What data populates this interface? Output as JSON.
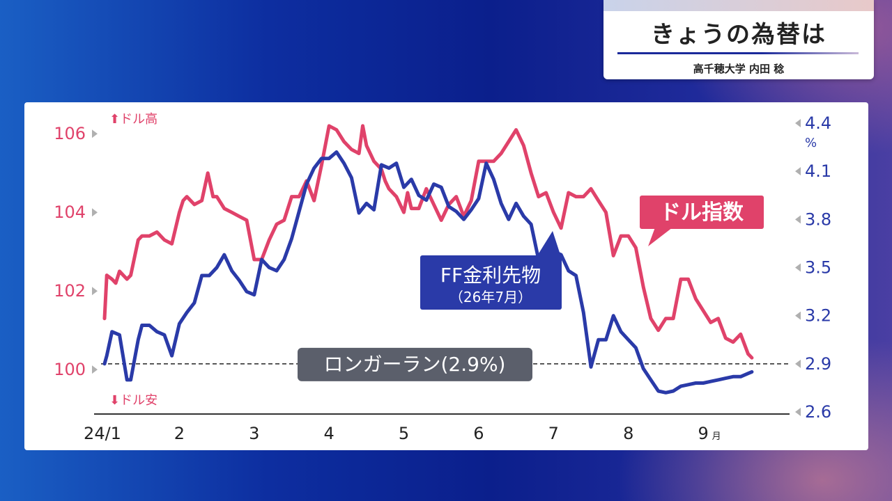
{
  "header": {
    "title": "きょうの為替は",
    "author": "高千穂大学 内田 稔"
  },
  "chart_data": {
    "type": "line",
    "x_ticks": [
      "24/1",
      "2",
      "3",
      "4",
      "5",
      "6",
      "7",
      "8",
      "9"
    ],
    "x_tick_suffix": "月",
    "left_axis": {
      "ticks": [
        100,
        102,
        104,
        106
      ],
      "range": [
        99.1,
        106.5
      ],
      "top_note": "⬆ドル高",
      "bottom_note": "⬇ドル安",
      "color": "#e0426a"
    },
    "right_axis": {
      "ticks": [
        "2.6",
        "2.9",
        "3.2",
        "3.5",
        "3.8",
        "4.1",
        "4.4"
      ],
      "range": [
        2.6,
        4.4
      ],
      "unit": "%",
      "color": "#2a3aa8"
    },
    "reference_line": {
      "value": 2.9,
      "label": "ロンガーラン(2.9%)"
    },
    "series": [
      {
        "name": "ドル指数",
        "axis": "left",
        "color": "#e0426a",
        "x": [
          1.0,
          1.03,
          1.1,
          1.15,
          1.2,
          1.3,
          1.35,
          1.45,
          1.5,
          1.6,
          1.7,
          1.8,
          1.9,
          2.0,
          2.05,
          2.1,
          2.2,
          2.3,
          2.38,
          2.45,
          2.5,
          2.6,
          2.7,
          2.8,
          2.9,
          3.0,
          3.1,
          3.2,
          3.3,
          3.4,
          3.5,
          3.6,
          3.7,
          3.8,
          3.9,
          4.0,
          4.1,
          4.2,
          4.3,
          4.4,
          4.45,
          4.5,
          4.6,
          4.7,
          4.75,
          4.8,
          4.9,
          5.0,
          5.05,
          5.1,
          5.2,
          5.3,
          5.4,
          5.5,
          5.6,
          5.7,
          5.8,
          5.9,
          6.0,
          6.1,
          6.2,
          6.3,
          6.4,
          6.5,
          6.6,
          6.7,
          6.8,
          6.9,
          7.0,
          7.1,
          7.2,
          7.3,
          7.4,
          7.5,
          7.6,
          7.7,
          7.8,
          7.9,
          8.0,
          8.1,
          8.2,
          8.3,
          8.4,
          8.5,
          8.6,
          8.7,
          8.8,
          8.9,
          9.0,
          9.1,
          9.2,
          9.3,
          9.4,
          9.5,
          9.6,
          9.65
        ],
        "values": [
          101.3,
          102.4,
          102.3,
          102.2,
          102.5,
          102.3,
          102.4,
          103.3,
          103.4,
          103.4,
          103.5,
          103.3,
          103.2,
          104.0,
          104.3,
          104.4,
          104.2,
          104.3,
          105.0,
          104.4,
          104.4,
          104.1,
          104.0,
          103.9,
          103.8,
          102.8,
          102.8,
          103.3,
          103.7,
          103.8,
          104.4,
          104.4,
          104.8,
          104.3,
          105.2,
          106.2,
          106.1,
          105.8,
          105.6,
          105.5,
          106.2,
          105.7,
          105.3,
          105.1,
          104.8,
          104.6,
          104.4,
          104.0,
          104.5,
          104.1,
          104.1,
          104.6,
          104.2,
          103.8,
          104.2,
          104.4,
          103.9,
          104.3,
          105.3,
          105.3,
          105.3,
          105.5,
          105.8,
          106.1,
          105.7,
          105.0,
          104.4,
          104.5,
          104.0,
          103.6,
          104.5,
          104.4,
          104.4,
          104.6,
          104.3,
          104.0,
          102.9,
          103.4,
          103.4,
          103.1,
          102.1,
          101.3,
          101.0,
          101.3,
          101.3,
          102.3,
          102.3,
          101.8,
          101.5,
          101.2,
          101.3,
          100.8,
          100.7,
          100.9,
          100.4,
          100.3
        ]
      },
      {
        "name": "FF金利先物",
        "sublabel": "（26年7月）",
        "axis": "right",
        "color": "#2a3aa8",
        "x": [
          1.0,
          1.03,
          1.1,
          1.2,
          1.3,
          1.35,
          1.45,
          1.5,
          1.6,
          1.7,
          1.8,
          1.9,
          2.0,
          2.1,
          2.2,
          2.3,
          2.4,
          2.5,
          2.6,
          2.7,
          2.8,
          2.9,
          3.0,
          3.1,
          3.2,
          3.3,
          3.4,
          3.5,
          3.6,
          3.7,
          3.8,
          3.9,
          4.0,
          4.1,
          4.2,
          4.3,
          4.4,
          4.5,
          4.6,
          4.7,
          4.8,
          4.9,
          5.0,
          5.1,
          5.2,
          5.3,
          5.4,
          5.5,
          5.6,
          5.7,
          5.8,
          5.9,
          6.0,
          6.1,
          6.2,
          6.3,
          6.4,
          6.5,
          6.6,
          6.7,
          6.8,
          6.9,
          7.0,
          7.1,
          7.2,
          7.3,
          7.4,
          7.5,
          7.6,
          7.7,
          7.8,
          7.9,
          8.0,
          8.1,
          8.2,
          8.3,
          8.4,
          8.5,
          8.6,
          8.7,
          8.8,
          8.9,
          9.0,
          9.1,
          9.2,
          9.3,
          9.4,
          9.5,
          9.6,
          9.65
        ],
        "values": [
          2.9,
          2.95,
          3.1,
          3.08,
          2.8,
          2.8,
          3.05,
          3.14,
          3.14,
          3.1,
          3.08,
          2.95,
          3.15,
          3.22,
          3.28,
          3.45,
          3.45,
          3.5,
          3.58,
          3.48,
          3.42,
          3.35,
          3.33,
          3.55,
          3.5,
          3.48,
          3.55,
          3.68,
          3.85,
          4.02,
          4.12,
          4.18,
          4.18,
          4.22,
          4.15,
          4.06,
          3.84,
          3.9,
          3.86,
          4.14,
          4.12,
          4.15,
          4.0,
          4.05,
          3.95,
          3.92,
          4.02,
          4.0,
          3.88,
          3.85,
          3.8,
          3.86,
          3.93,
          4.15,
          4.05,
          3.9,
          3.8,
          3.9,
          3.82,
          3.77,
          3.55,
          3.52,
          3.6,
          3.58,
          3.48,
          3.45,
          3.22,
          2.88,
          3.05,
          3.05,
          3.2,
          3.1,
          3.05,
          3.0,
          2.87,
          2.8,
          2.73,
          2.72,
          2.73,
          2.76,
          2.77,
          2.78,
          2.78,
          2.79,
          2.8,
          2.81,
          2.82,
          2.82,
          2.84,
          2.85
        ]
      }
    ],
    "grid": false,
    "legend": "inline labels"
  }
}
